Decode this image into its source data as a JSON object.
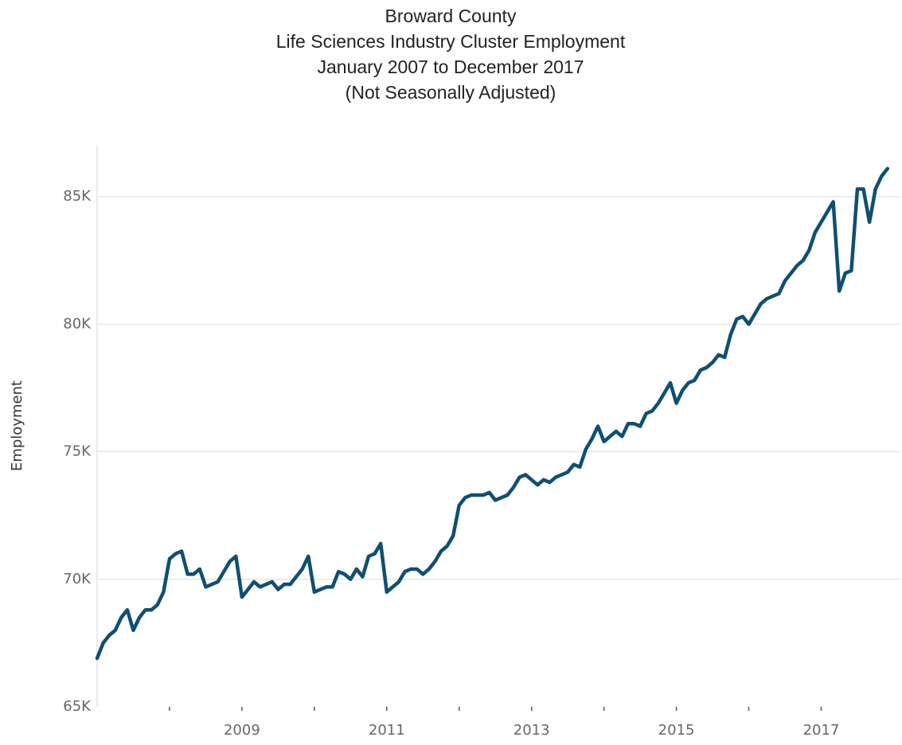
{
  "chart_data": {
    "type": "line",
    "title": [
      "Broward County",
      "Life Sciences Industry Cluster Employment",
      "January 2007 to December 2017",
      "(Not Seasonally Adjusted)"
    ],
    "y_label": "Employment",
    "x": [
      "2007-01",
      "2007-02",
      "2007-03",
      "2007-04",
      "2007-05",
      "2007-06",
      "2007-07",
      "2007-08",
      "2007-09",
      "2007-10",
      "2007-11",
      "2007-12",
      "2008-01",
      "2008-02",
      "2008-03",
      "2008-04",
      "2008-05",
      "2008-06",
      "2008-07",
      "2008-08",
      "2008-09",
      "2008-10",
      "2008-11",
      "2008-12",
      "2009-01",
      "2009-02",
      "2009-03",
      "2009-04",
      "2009-05",
      "2009-06",
      "2009-07",
      "2009-08",
      "2009-09",
      "2009-10",
      "2009-11",
      "2009-12",
      "2010-01",
      "2010-02",
      "2010-03",
      "2010-04",
      "2010-05",
      "2010-06",
      "2010-07",
      "2010-08",
      "2010-09",
      "2010-10",
      "2010-11",
      "2010-12",
      "2011-01",
      "2011-02",
      "2011-03",
      "2011-04",
      "2011-05",
      "2011-06",
      "2011-07",
      "2011-08",
      "2011-09",
      "2011-10",
      "2011-11",
      "2011-12",
      "2012-01",
      "2012-02",
      "2012-03",
      "2012-04",
      "2012-05",
      "2012-06",
      "2012-07",
      "2012-08",
      "2012-09",
      "2012-10",
      "2012-11",
      "2012-12",
      "2013-01",
      "2013-02",
      "2013-03",
      "2013-04",
      "2013-05",
      "2013-06",
      "2013-07",
      "2013-08",
      "2013-09",
      "2013-10",
      "2013-11",
      "2013-12",
      "2014-01",
      "2014-02",
      "2014-03",
      "2014-04",
      "2014-05",
      "2014-06",
      "2014-07",
      "2014-08",
      "2014-09",
      "2014-10",
      "2014-11",
      "2014-12",
      "2015-01",
      "2015-02",
      "2015-03",
      "2015-04",
      "2015-05",
      "2015-06",
      "2015-07",
      "2015-08",
      "2015-09",
      "2015-10",
      "2015-11",
      "2015-12",
      "2016-01",
      "2016-02",
      "2016-03",
      "2016-04",
      "2016-05",
      "2016-06",
      "2016-07",
      "2016-08",
      "2016-09",
      "2016-10",
      "2016-11",
      "2016-12",
      "2017-01",
      "2017-02",
      "2017-03",
      "2017-04",
      "2017-05",
      "2017-06",
      "2017-07",
      "2017-08",
      "2017-09",
      "2017-10",
      "2017-11",
      "2017-12"
    ],
    "series": [
      {
        "name": "Employment",
        "color": "#0f4f73",
        "values": [
          66900,
          67500,
          67800,
          68000,
          68500,
          68800,
          68000,
          68500,
          68800,
          68800,
          69000,
          69500,
          70800,
          71000,
          71100,
          70200,
          70200,
          70400,
          69700,
          69800,
          69900,
          70300,
          70700,
          70900,
          69300,
          69600,
          69900,
          69700,
          69800,
          69900,
          69600,
          69800,
          69800,
          70100,
          70400,
          70900,
          69500,
          69600,
          69700,
          69700,
          70300,
          70200,
          70000,
          70400,
          70100,
          70900,
          71000,
          71400,
          69500,
          69700,
          69900,
          70300,
          70400,
          70400,
          70200,
          70400,
          70700,
          71100,
          71300,
          71700,
          72900,
          73200,
          73300,
          73300,
          73300,
          73400,
          73100,
          73200,
          73300,
          73600,
          74000,
          74100,
          73900,
          73700,
          73900,
          73800,
          74000,
          74100,
          74200,
          74500,
          74400,
          75100,
          75500,
          76000,
          75400,
          75600,
          75800,
          75600,
          76100,
          76100,
          76000,
          76500,
          76600,
          76900,
          77300,
          77700,
          76900,
          77400,
          77700,
          77800,
          78200,
          78300,
          78500,
          78800,
          78700,
          79600,
          80200,
          80300,
          80000,
          80400,
          80800,
          81000,
          81100,
          81200,
          81700,
          82000,
          82300,
          82500,
          82900,
          83600,
          84000,
          84400,
          84800,
          81300,
          82000,
          82100,
          85300,
          85300,
          84000,
          85300,
          85800,
          86100
        ]
      }
    ],
    "xlim": [
      "2007-01",
      "2018-02"
    ],
    "xticks": [
      2009,
      2011,
      2013,
      2015,
      2017
    ],
    "xminor_ticks": [
      2008,
      2010,
      2012,
      2014,
      2016
    ],
    "ylim": [
      65000,
      87000
    ],
    "yticks": [
      {
        "value": 65000,
        "label": "65K"
      },
      {
        "value": 70000,
        "label": "70K"
      },
      {
        "value": 75000,
        "label": "75K"
      },
      {
        "value": 80000,
        "label": "80K"
      },
      {
        "value": 85000,
        "label": "85K"
      }
    ],
    "grid": true
  }
}
